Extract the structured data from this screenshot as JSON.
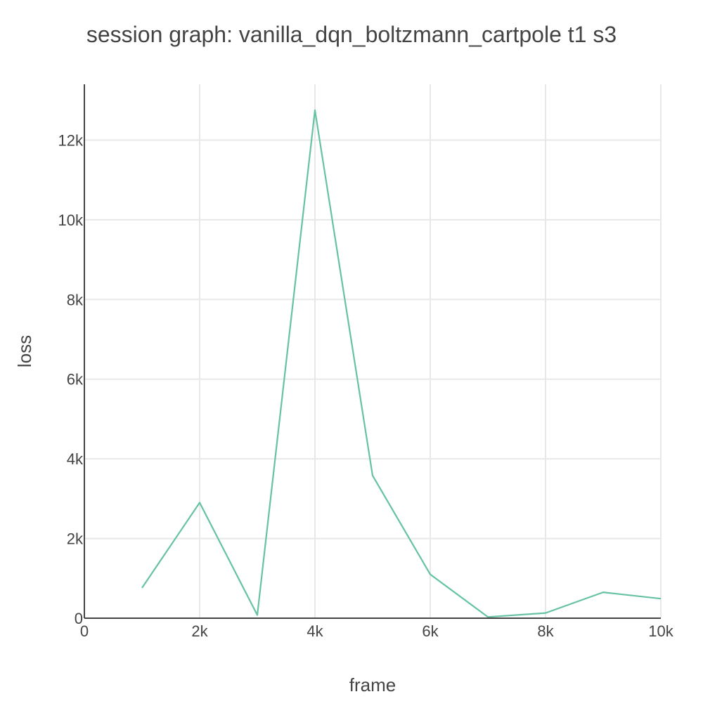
{
  "chart_data": {
    "type": "line",
    "title": "session graph: vanilla_dqn_boltzmann_cartpole t1 s3",
    "xlabel": "frame",
    "ylabel": "loss",
    "xlim": [
      0,
      10000
    ],
    "ylim": [
      0,
      13400
    ],
    "x_ticks": [
      {
        "value": 0,
        "label": "0"
      },
      {
        "value": 2000,
        "label": "2k"
      },
      {
        "value": 4000,
        "label": "4k"
      },
      {
        "value": 6000,
        "label": "6k"
      },
      {
        "value": 8000,
        "label": "8k"
      },
      {
        "value": 10000,
        "label": "10k"
      }
    ],
    "y_ticks": [
      {
        "value": 0,
        "label": "0"
      },
      {
        "value": 2000,
        "label": "2k"
      },
      {
        "value": 4000,
        "label": "4k"
      },
      {
        "value": 6000,
        "label": "6k"
      },
      {
        "value": 8000,
        "label": "8k"
      },
      {
        "value": 10000,
        "label": "10k"
      },
      {
        "value": 12000,
        "label": "12k"
      }
    ],
    "grid": true,
    "legend": "none",
    "series": [
      {
        "color": "#66c2a5",
        "x": [
          1000,
          2000,
          3000,
          4000,
          5000,
          6000,
          7000,
          8000,
          9000,
          10000
        ],
        "y": [
          760,
          2900,
          80,
          12750,
          3580,
          1100,
          30,
          130,
          650,
          490
        ]
      }
    ]
  }
}
